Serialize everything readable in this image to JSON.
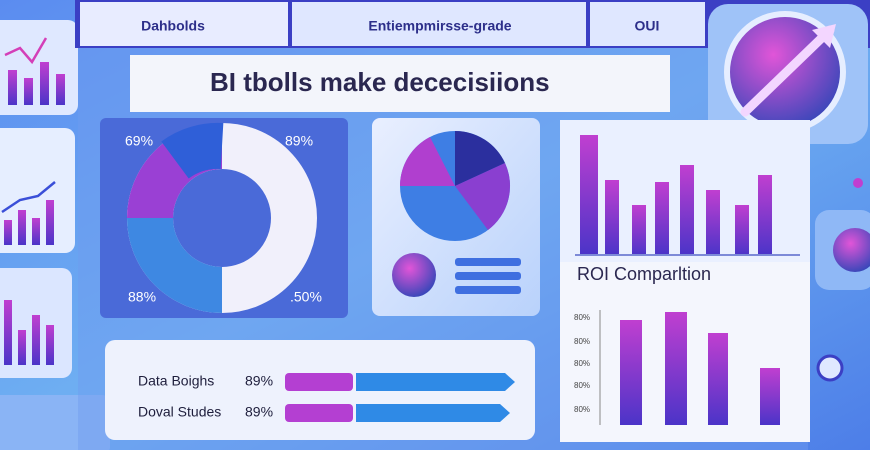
{
  "nav": {
    "items": [
      "Dahbolds",
      "Entiempmirsse-grade",
      "OUI"
    ]
  },
  "header": {
    "title": "BI tbolls make dececisiions"
  },
  "donut_panel": {
    "labels": [
      "69%",
      "89%",
      "88%",
      ".50%"
    ]
  },
  "roi_panel": {
    "title": "ROI Comparltion",
    "axis_labels": [
      "80%",
      "80%",
      "80%",
      "80%",
      "80%"
    ]
  },
  "progress_panel": {
    "rows": [
      {
        "label": "Data Boighs",
        "value": "89%"
      },
      {
        "label": "Doval Studes",
        "value": "89%"
      }
    ]
  }
}
